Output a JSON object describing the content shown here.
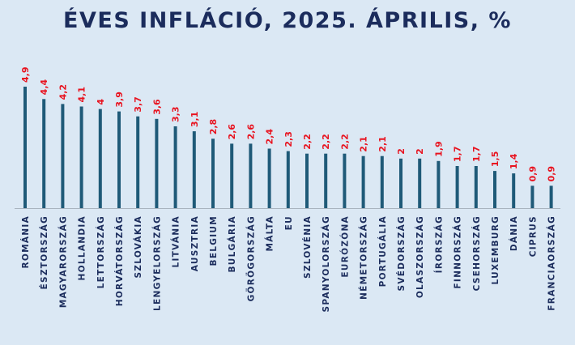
{
  "colors": {
    "background": "#dbe8f4",
    "bar": "#1f5a78",
    "value_label": "#e8131f",
    "category_label": "#1b2c5c",
    "title": "#1b2c5c",
    "axis": "#a9b4bf"
  },
  "chart_data": {
    "type": "bar",
    "title": "ÉVES INFLÁCIÓ, 2025. ÁPRILIS, %",
    "categories": [
      "ROMÁNIA",
      "ÉSZTORSZÁG",
      "MAGYARORSZÁG",
      "HOLLANDIA",
      "LETTORSZÁG",
      "HORVÁTORSZÁG",
      "SZLOVÁKIA",
      "LENGYELORSZÁG",
      "LITVÁNIA",
      "AUSZTRIA",
      "BELGIUM",
      "BULGÁRIA",
      "GÖRÖGORSZÁG",
      "MÁLTA",
      "EU",
      "SZLOVÉNIA",
      "SPANYOLORSZÁG",
      "EURÓZÓNA",
      "NÉMETORSZÁG",
      "PORTUGÁLIA",
      "SVÉDORSZÁG",
      "OLASZORSZÁG",
      "ÍRORSZÁG",
      "FINNORSZÁG",
      "CSEHORSZÁG",
      "LUXEMBURG",
      "DÁNIA",
      "CIPRUS",
      "FRANCIAORSZÁG"
    ],
    "values": [
      4.9,
      4.4,
      4.2,
      4.1,
      4,
      3.9,
      3.7,
      3.6,
      3.3,
      3.1,
      2.8,
      2.6,
      2.6,
      2.4,
      2.3,
      2.2,
      2.2,
      2.2,
      2.1,
      2.1,
      2,
      2,
      1.9,
      1.7,
      1.7,
      1.5,
      1.4,
      0.9,
      0.9
    ],
    "value_labels": [
      "4,9",
      "4,4",
      "4,2",
      "4,1",
      "4",
      "3,9",
      "3,7",
      "3,6",
      "3,3",
      "3,1",
      "2,8",
      "2,6",
      "2,6",
      "2,4",
      "2,3",
      "2,2",
      "2,2",
      "2,2",
      "2,1",
      "2,1",
      "2",
      "2",
      "1,9",
      "1,7",
      "1,7",
      "1,5",
      "1,4",
      "0,9",
      "0,9"
    ],
    "ylim": [
      0,
      4.9
    ],
    "grid": false,
    "legend": "none"
  }
}
